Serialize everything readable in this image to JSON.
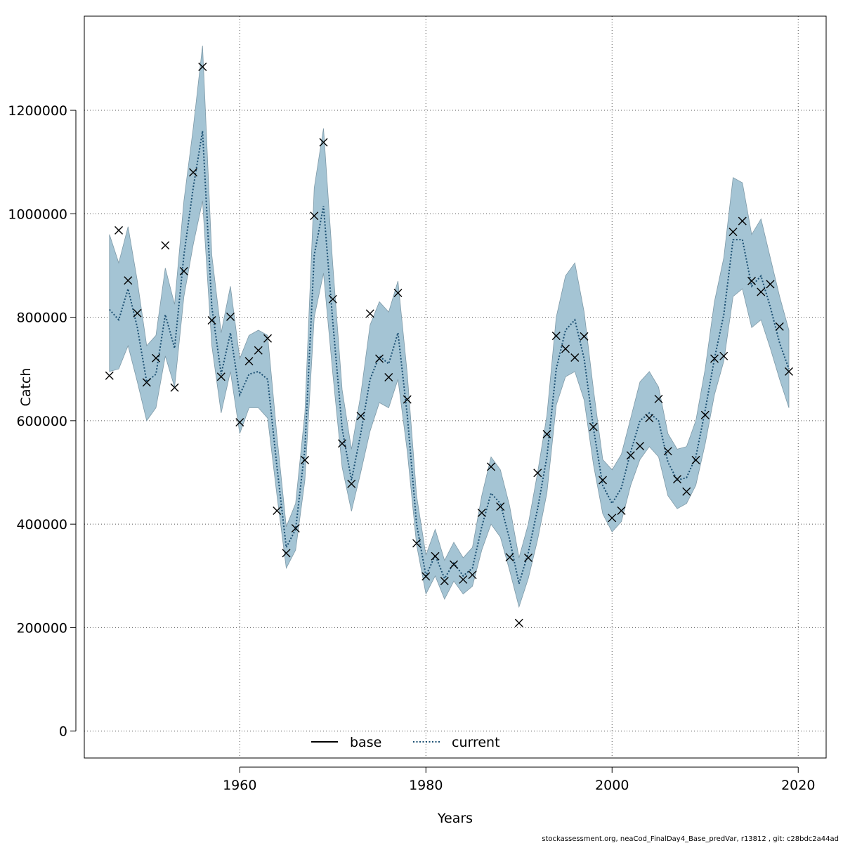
{
  "chart_data": {
    "type": "line",
    "xlabel": "Years",
    "ylabel": "Catch",
    "xlim": [
      1943.3,
      2023
    ],
    "ylim": [
      -52000,
      1382000
    ],
    "x_ticks": [
      1960,
      1980,
      2000,
      2020
    ],
    "y_ticks": [
      0,
      200000,
      400000,
      600000,
      800000,
      1000000,
      1200000
    ],
    "grid": true,
    "legend_position": "bottom-center",
    "colors": {
      "band": "#a4c4d4",
      "band_edge": "#7f9aa8",
      "current": "#1b4f72",
      "base": "#000000",
      "obs": "#000000",
      "grid": "#555555"
    },
    "legend": [
      {
        "label": "base",
        "style": "solid"
      },
      {
        "label": "current",
        "style": "dotted"
      }
    ],
    "x": [
      1946,
      1947,
      1948,
      1949,
      1950,
      1951,
      1952,
      1953,
      1954,
      1955,
      1956,
      1957,
      1958,
      1959,
      1960,
      1961,
      1962,
      1963,
      1964,
      1965,
      1966,
      1967,
      1968,
      1969,
      1970,
      1971,
      1972,
      1973,
      1974,
      1975,
      1976,
      1977,
      1978,
      1979,
      1980,
      1981,
      1982,
      1983,
      1984,
      1985,
      1986,
      1987,
      1988,
      1989,
      1990,
      1991,
      1992,
      1993,
      1994,
      1995,
      1996,
      1997,
      1998,
      1999,
      2000,
      2001,
      2002,
      2003,
      2004,
      2005,
      2006,
      2007,
      2008,
      2009,
      2010,
      2011,
      2012,
      2013,
      2014,
      2015,
      2016,
      2017,
      2018,
      2019
    ],
    "series": [
      {
        "name": "current",
        "values": [
          815000,
          795000,
          855000,
          780000,
          675000,
          690000,
          805000,
          740000,
          920000,
          1050000,
          1160000,
          820000,
          690000,
          770000,
          650000,
          690000,
          695000,
          680000,
          510000,
          355000,
          390000,
          545000,
          920000,
          1015000,
          790000,
          585000,
          485000,
          575000,
          680000,
          725000,
          710000,
          770000,
          610000,
          400000,
          300000,
          340000,
          295000,
          325000,
          300000,
          315000,
          395000,
          460000,
          440000,
          370000,
          285000,
          345000,
          430000,
          530000,
          700000,
          775000,
          795000,
          720000,
          585000,
          475000,
          440000,
          470000,
          540000,
          600000,
          615000,
          600000,
          520000,
          485000,
          490000,
          530000,
          620000,
          720000,
          805000,
          950000,
          950000,
          860000,
          880000,
          820000,
          750000,
          700000
        ]
      },
      {
        "name": "band_upper",
        "values": [
          960000,
          905000,
          975000,
          870000,
          745000,
          765000,
          895000,
          825000,
          1025000,
          1165000,
          1325000,
          920000,
          770000,
          860000,
          720000,
          765000,
          775000,
          765000,
          570000,
          395000,
          440000,
          615000,
          1050000,
          1165000,
          900000,
          660000,
          545000,
          650000,
          785000,
          830000,
          810000,
          870000,
          690000,
          455000,
          340000,
          390000,
          330000,
          365000,
          335000,
          355000,
          455000,
          530000,
          505000,
          435000,
          335000,
          400000,
          500000,
          610000,
          800000,
          880000,
          905000,
          810000,
          660000,
          525000,
          505000,
          535000,
          605000,
          675000,
          695000,
          665000,
          575000,
          545000,
          550000,
          600000,
          700000,
          830000,
          915000,
          1070000,
          1060000,
          960000,
          990000,
          915000,
          840000,
          775000
        ]
      },
      {
        "name": "band_lower",
        "values": [
          695000,
          700000,
          745000,
          675000,
          600000,
          625000,
          725000,
          665000,
          840000,
          940000,
          1025000,
          745000,
          615000,
          695000,
          575000,
          625000,
          625000,
          605000,
          455000,
          315000,
          350000,
          485000,
          800000,
          885000,
          690000,
          510000,
          425000,
          500000,
          580000,
          635000,
          625000,
          680000,
          540000,
          360000,
          265000,
          300000,
          255000,
          290000,
          265000,
          280000,
          350000,
          400000,
          375000,
          310000,
          240000,
          295000,
          370000,
          460000,
          630000,
          685000,
          695000,
          640000,
          515000,
          420000,
          385000,
          405000,
          475000,
          525000,
          550000,
          530000,
          455000,
          430000,
          440000,
          475000,
          555000,
          650000,
          715000,
          840000,
          855000,
          780000,
          795000,
          740000,
          680000,
          625000
        ]
      },
      {
        "name": "observations",
        "values": [
          687000,
          968000,
          871000,
          808000,
          674000,
          721000,
          939000,
          664000,
          889000,
          1080000,
          1284000,
          794000,
          685000,
          801000,
          597000,
          715000,
          736000,
          759000,
          426000,
          344000,
          392000,
          524000,
          996000,
          1138000,
          835000,
          556000,
          478000,
          609000,
          807000,
          720000,
          684000,
          847000,
          641000,
          363000,
          299000,
          338000,
          290000,
          322000,
          293000,
          302000,
          422000,
          511000,
          434000,
          336000,
          209000,
          335000,
          499000,
          574000,
          764000,
          739000,
          722000,
          763000,
          588000,
          485000,
          412000,
          426000,
          533000,
          551000,
          605000,
          642000,
          541000,
          487000,
          463000,
          524000,
          611000,
          720000,
          725000,
          965000,
          986000,
          870000,
          849000,
          864000,
          782000,
          695000
        ]
      }
    ],
    "footer": "stockassessment.org, neaCod_FinalDay4_Base_predVar, r13812 , git: c28bdc2a44ad"
  }
}
